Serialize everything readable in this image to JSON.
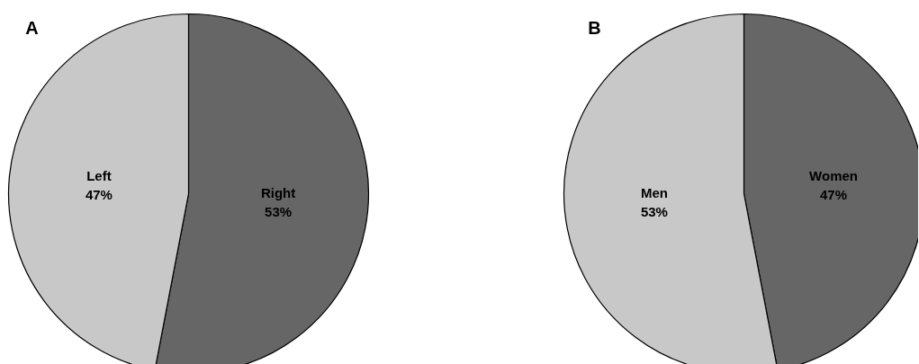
{
  "chart_data": [
    {
      "type": "pie",
      "title": "A",
      "categories": [
        "Right",
        "Left"
      ],
      "values": [
        53,
        47
      ],
      "colors": [
        "#666666",
        "#c8c8c8"
      ],
      "value_labels": [
        "53%",
        "47%"
      ]
    },
    {
      "type": "pie",
      "title": "B",
      "categories": [
        "Women",
        "Men"
      ],
      "values": [
        47,
        53
      ],
      "colors": [
        "#666666",
        "#c8c8c8"
      ],
      "value_labels": [
        "47%",
        "53%"
      ]
    }
  ]
}
